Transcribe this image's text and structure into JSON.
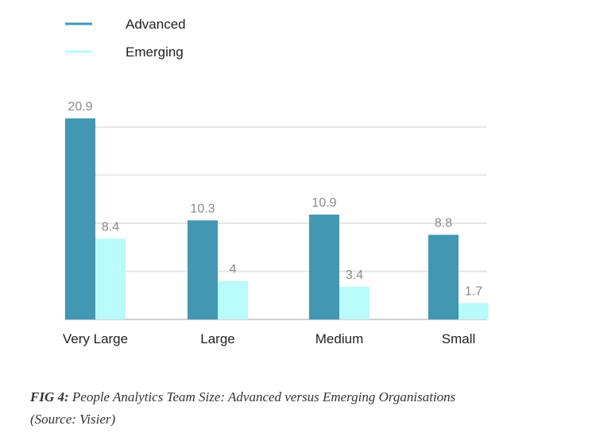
{
  "colors": {
    "advanced": "#4297b2",
    "emerging": "#b9fafb",
    "grid": "#e6e6e6",
    "baseline": "#d0d0d0",
    "value_label": "#8a8a8a",
    "text": "#222222"
  },
  "chart_data": {
    "type": "bar",
    "title": "",
    "xlabel": "",
    "ylabel": "",
    "ylim": [
      0,
      21
    ],
    "grid": true,
    "legend_position": "top-left",
    "categories": [
      "Very Large",
      "Large",
      "Medium",
      "Small"
    ],
    "series": [
      {
        "name": "Advanced",
        "color_key": "advanced",
        "values": [
          20.9,
          10.3,
          10.9,
          8.8
        ],
        "labels": [
          "20.9",
          "10.3",
          "10.9",
          "8.8"
        ]
      },
      {
        "name": "Emerging",
        "color_key": "emerging",
        "values": [
          8.4,
          4,
          3.4,
          1.7
        ],
        "labels": [
          "8.4",
          "4",
          "3.4",
          "1.7"
        ]
      }
    ]
  },
  "caption": {
    "fig_label": "FIG 4:",
    "text": " People Analytics Team Size: Advanced versus Emerging Organisations",
    "source": "(Source: Visier)"
  }
}
